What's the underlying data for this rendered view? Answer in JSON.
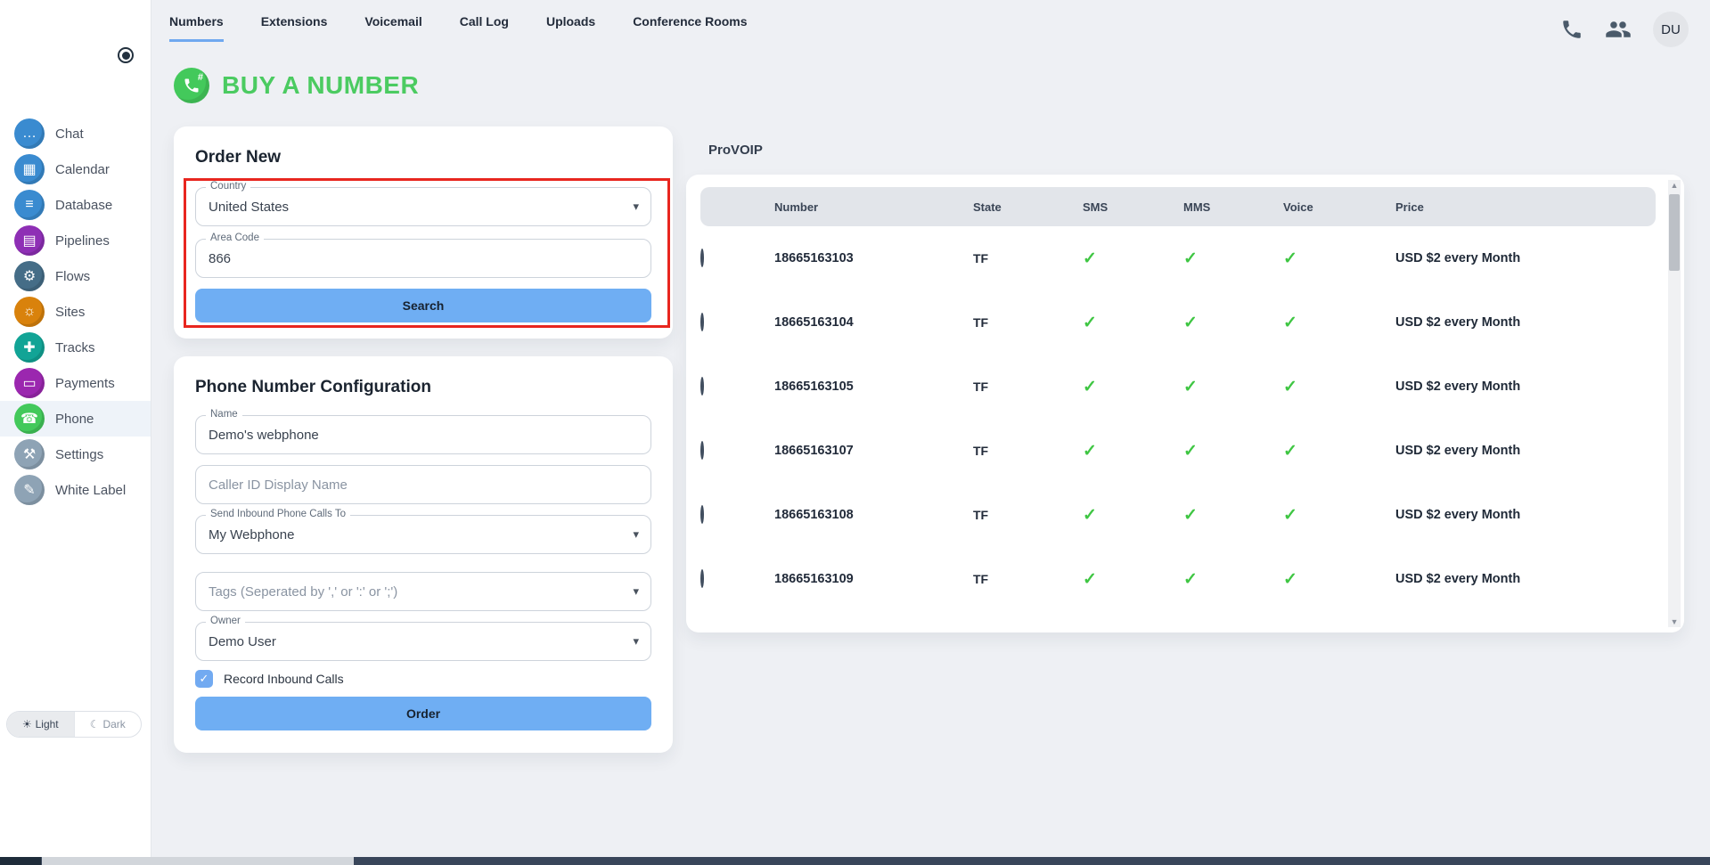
{
  "header": {
    "tabs": [
      "Numbers",
      "Extensions",
      "Voicemail",
      "Call Log",
      "Uploads",
      "Conference Rooms"
    ],
    "active_tab": 0,
    "avatar": "DU"
  },
  "page": {
    "title": "BUY A NUMBER"
  },
  "sidebar": {
    "items": [
      {
        "label": "Chat",
        "icon": "chat-icon",
        "color": "#3a8bd0"
      },
      {
        "label": "Calendar",
        "icon": "calendar-icon",
        "color": "#3a8bd0"
      },
      {
        "label": "Database",
        "icon": "database-icon",
        "color": "#3a8bd0"
      },
      {
        "label": "Pipelines",
        "icon": "pipelines-icon",
        "color": "#8e2fb5"
      },
      {
        "label": "Flows",
        "icon": "flows-icon",
        "color": "#456d87"
      },
      {
        "label": "Sites",
        "icon": "sites-icon",
        "color": "#d9820c"
      },
      {
        "label": "Tracks",
        "icon": "tracks-icon",
        "color": "#12a496"
      },
      {
        "label": "Payments",
        "icon": "payments-icon",
        "color": "#9b27af"
      },
      {
        "label": "Phone",
        "icon": "phone-icon",
        "color": "#43c95b",
        "active": true
      },
      {
        "label": "Settings",
        "icon": "settings-icon",
        "color": "#8ea3b5"
      },
      {
        "label": "White Label",
        "icon": "white-label-icon",
        "color": "#8ea3b5"
      }
    ],
    "theme_toggle": {
      "light": "Light",
      "dark": "Dark",
      "active": "light"
    }
  },
  "order_new": {
    "title": "Order New",
    "country_label": "Country",
    "country_value": "United States",
    "area_code_label": "Area Code",
    "area_code_value": "866",
    "search_label": "Search"
  },
  "phone_config": {
    "title": "Phone Number Configuration",
    "name_label": "Name",
    "name_value": "Demo's webphone",
    "caller_id_placeholder": "Caller ID Display Name",
    "send_to_label": "Send Inbound Phone Calls To",
    "send_to_value": "My Webphone",
    "tags_placeholder": "Tags (Seperated by ',' or ':' or ';')",
    "owner_label": "Owner",
    "owner_value": "Demo User",
    "record_calls_label": "Record Inbound Calls",
    "record_calls_checked": true,
    "order_label": "Order"
  },
  "provider_panel": {
    "title": "ProVOIP",
    "columns": [
      "Number",
      "State",
      "SMS",
      "MMS",
      "Voice",
      "Price"
    ],
    "rows": [
      {
        "number": "18665163103",
        "state": "TF",
        "sms": true,
        "mms": true,
        "voice": true,
        "price": "USD $2 every Month"
      },
      {
        "number": "18665163104",
        "state": "TF",
        "sms": true,
        "mms": true,
        "voice": true,
        "price": "USD $2 every Month"
      },
      {
        "number": "18665163105",
        "state": "TF",
        "sms": true,
        "mms": true,
        "voice": true,
        "price": "USD $2 every Month"
      },
      {
        "number": "18665163107",
        "state": "TF",
        "sms": true,
        "mms": true,
        "voice": true,
        "price": "USD $2 every Month"
      },
      {
        "number": "18665163108",
        "state": "TF",
        "sms": true,
        "mms": true,
        "voice": true,
        "price": "USD $2 every Month"
      },
      {
        "number": "18665163109",
        "state": "TF",
        "sms": true,
        "mms": true,
        "voice": true,
        "price": "USD $2 every Month"
      }
    ]
  },
  "colors": {
    "accent_blue": "#6faef3",
    "brand_green": "#4bcb61",
    "check_green": "#3fc643",
    "annotation_red": "#e8261f"
  }
}
